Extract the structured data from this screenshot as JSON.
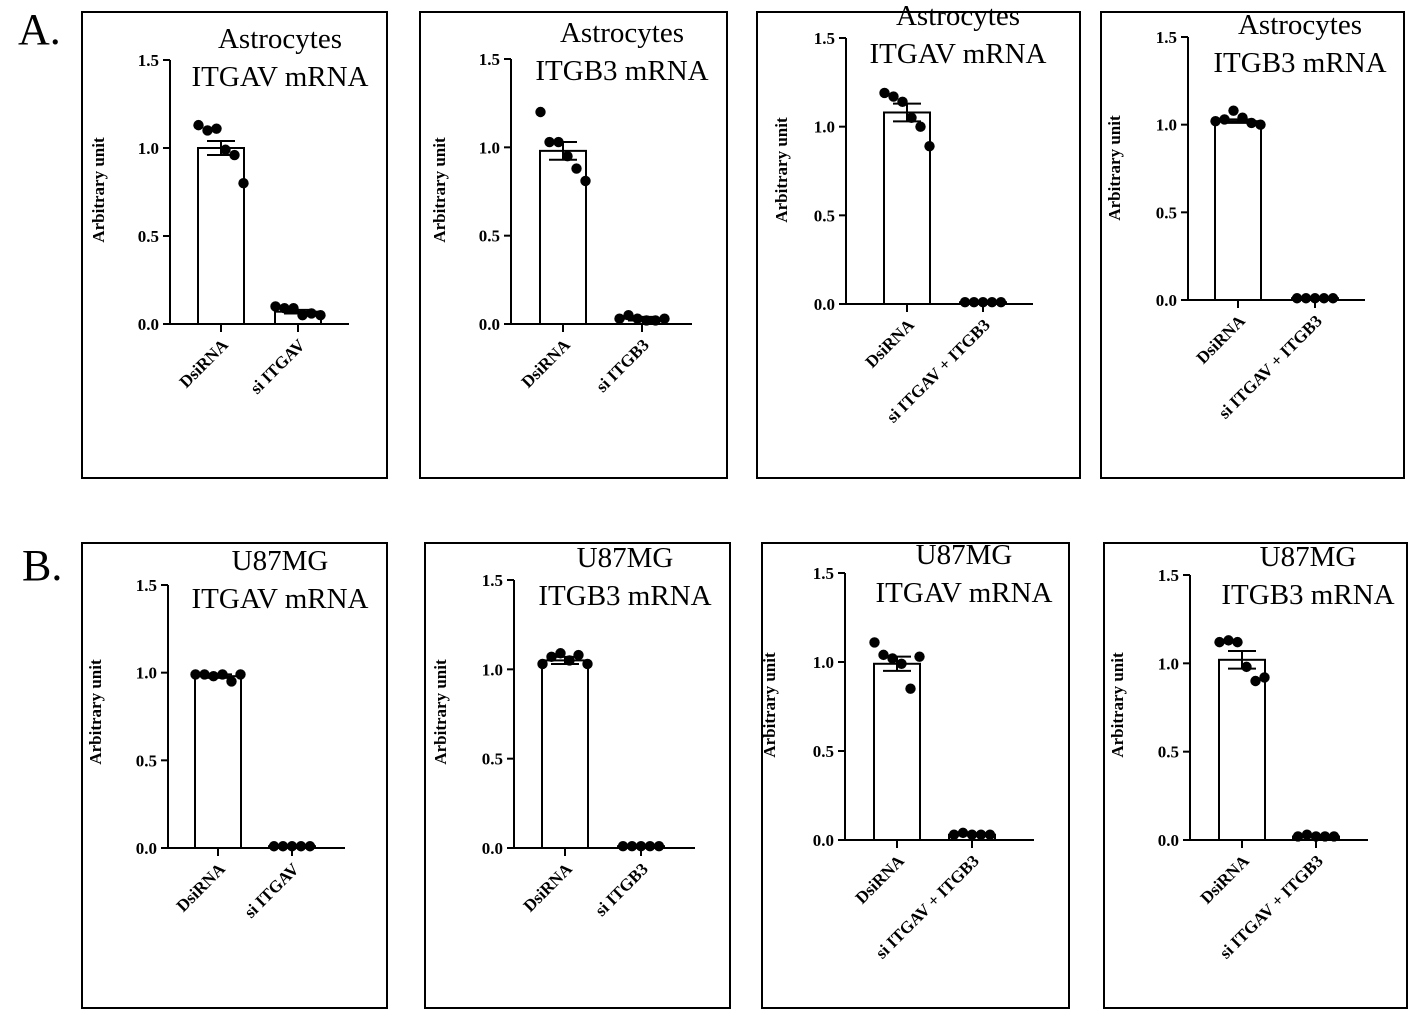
{
  "figure": {
    "row_labels": [
      "A.",
      "B."
    ]
  },
  "chart_data": [
    {
      "type": "bar",
      "panel": "A",
      "title_lines": [
        "Astrocytes",
        "ITGAV mRNA"
      ],
      "ylabel": "Arbitrary unit",
      "ylim": [
        0,
        1.5
      ],
      "yticks": [
        "0.0",
        "0.5",
        "1.0",
        "1.5"
      ],
      "categories": [
        "DsiRNA",
        "si ITGAV"
      ],
      "values": [
        1.0,
        0.07
      ],
      "errors": [
        0.04,
        0.01
      ],
      "points": [
        [
          1.13,
          1.1,
          1.11,
          0.99,
          0.96,
          0.8
        ],
        [
          0.1,
          0.09,
          0.09,
          0.05,
          0.06,
          0.05
        ]
      ]
    },
    {
      "type": "bar",
      "panel": "A",
      "title_lines": [
        "Astrocytes",
        "ITGB3 mRNA"
      ],
      "ylabel": "Arbitrary unit",
      "ylim": [
        0,
        1.5
      ],
      "yticks": [
        "0.0",
        "0.5",
        "1.0",
        "1.5"
      ],
      "categories": [
        "DsiRNA",
        "si ITGB3"
      ],
      "values": [
        0.98,
        0.03
      ],
      "errors": [
        0.05,
        0.01
      ],
      "points": [
        [
          1.2,
          1.03,
          1.03,
          0.95,
          0.88,
          0.81
        ],
        [
          0.03,
          0.05,
          0.03,
          0.02,
          0.02,
          0.03
        ]
      ]
    },
    {
      "type": "bar",
      "panel": "A",
      "title_lines": [
        "Astrocytes",
        "ITGAV mRNA"
      ],
      "ylabel": "Arbitrary unit",
      "ylim": [
        0,
        1.5
      ],
      "yticks": [
        "0.0",
        "0.5",
        "1.0",
        "1.5"
      ],
      "categories": [
        "DsiRNA",
        "si ITGAV + ITGB3"
      ],
      "values": [
        1.08,
        0.01
      ],
      "errors": [
        0.05,
        0.005
      ],
      "points": [
        [
          1.19,
          1.17,
          1.14,
          1.05,
          1.0,
          0.89
        ],
        [
          0.01,
          0.01,
          0.01,
          0.01,
          0.01
        ]
      ]
    },
    {
      "type": "bar",
      "panel": "A",
      "title_lines": [
        "Astrocytes",
        "ITGB3 mRNA"
      ],
      "ylabel": "Arbitrary unit",
      "ylim": [
        0,
        1.5
      ],
      "yticks": [
        "0.0",
        "0.5",
        "1.0",
        "1.5"
      ],
      "categories": [
        "DsiRNA",
        "si ITGAV + ITGB3"
      ],
      "values": [
        1.02,
        0.01
      ],
      "errors": [
        0.01,
        0.003
      ],
      "points": [
        [
          1.02,
          1.03,
          1.08,
          1.04,
          1.01,
          1.0
        ],
        [
          0.01,
          0.01,
          0.01,
          0.01,
          0.01
        ]
      ]
    },
    {
      "type": "bar",
      "panel": "B",
      "title_lines": [
        "U87MG",
        "ITGAV mRNA"
      ],
      "ylabel": "Arbitrary unit",
      "ylim": [
        0,
        1.5
      ],
      "yticks": [
        "0.0",
        "0.5",
        "1.0",
        "1.5"
      ],
      "categories": [
        "DsiRNA",
        "si ITGAV"
      ],
      "values": [
        0.98,
        0.01
      ],
      "errors": [
        0.01,
        0.003
      ],
      "points": [
        [
          0.99,
          0.99,
          0.98,
          0.99,
          0.95,
          0.99
        ],
        [
          0.01,
          0.01,
          0.01,
          0.01,
          0.01
        ]
      ]
    },
    {
      "type": "bar",
      "panel": "B",
      "title_lines": [
        "U87MG",
        "ITGB3 mRNA"
      ],
      "ylabel": "Arbitrary unit",
      "ylim": [
        0,
        1.5
      ],
      "yticks": [
        "0.0",
        "0.5",
        "1.0",
        "1.5"
      ],
      "categories": [
        "DsiRNA",
        "si ITGB3"
      ],
      "values": [
        1.05,
        0.01
      ],
      "errors": [
        0.02,
        0.003
      ],
      "points": [
        [
          1.03,
          1.07,
          1.09,
          1.05,
          1.08,
          1.03
        ],
        [
          0.01,
          0.01,
          0.01,
          0.01,
          0.01
        ]
      ]
    },
    {
      "type": "bar",
      "panel": "B",
      "title_lines": [
        "U87MG",
        "ITGAV mRNA"
      ],
      "ylabel": "Arbitrary unit",
      "ylim": [
        0,
        1.5
      ],
      "yticks": [
        "0.0",
        "0.5",
        "1.0",
        "1.5"
      ],
      "categories": [
        "DsiRNA",
        "si ITGAV + ITGB3"
      ],
      "values": [
        0.99,
        0.03
      ],
      "errors": [
        0.04,
        0.005
      ],
      "points": [
        [
          1.11,
          1.04,
          1.02,
          0.99,
          0.85,
          1.03
        ],
        [
          0.03,
          0.04,
          0.03,
          0.03,
          0.03
        ]
      ]
    },
    {
      "type": "bar",
      "panel": "B",
      "title_lines": [
        "U87MG",
        "ITGB3 mRNA"
      ],
      "ylabel": "Arbitrary unit",
      "ylim": [
        0,
        1.5
      ],
      "yticks": [
        "0.0",
        "0.5",
        "1.0",
        "1.5"
      ],
      "categories": [
        "DsiRNA",
        "si ITGAV + ITGB3"
      ],
      "values": [
        1.02,
        0.02
      ],
      "errors": [
        0.05,
        0.005
      ],
      "points": [
        [
          1.12,
          1.13,
          1.12,
          0.98,
          0.9,
          0.92
        ],
        [
          0.02,
          0.03,
          0.02,
          0.02,
          0.02
        ]
      ]
    }
  ]
}
